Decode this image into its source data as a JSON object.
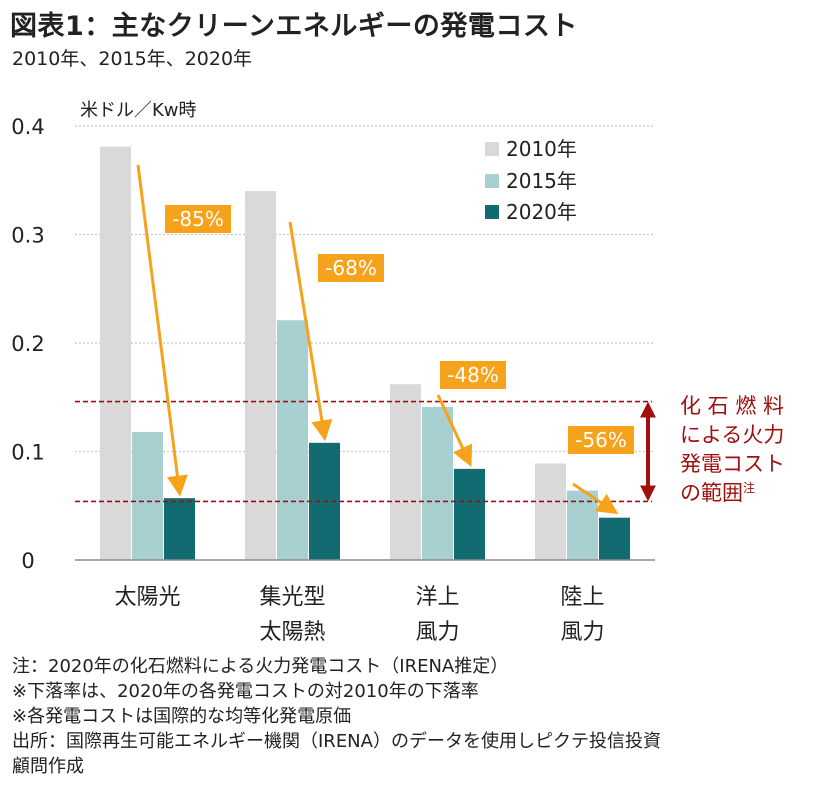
{
  "title": "図表1：主なクリーンエネルギーの発電コスト",
  "subtitle": "2010年、2015年、2020年",
  "chart_data": {
    "type": "bar",
    "ylabel": "米ドル／Kw時",
    "ylim": [
      0,
      0.4
    ],
    "yticks": [
      {
        "value": 0,
        "label": "0"
      },
      {
        "value": 0.1,
        "label": "0.1"
      },
      {
        "value": 0.2,
        "label": "0.2"
      },
      {
        "value": 0.3,
        "label": "0.3"
      },
      {
        "value": 0.4,
        "label": "0.4"
      }
    ],
    "grid": true,
    "legend_position": "top-right",
    "categories": [
      {
        "line1": "太陽光",
        "line2": ""
      },
      {
        "line1": "集光型",
        "line2": "太陽熱"
      },
      {
        "line1": "洋上",
        "line2": "風力"
      },
      {
        "line1": "陸上",
        "line2": "風力"
      }
    ],
    "series": [
      {
        "name": "2010年",
        "color": "#d9d9d9",
        "values": [
          0.381,
          0.34,
          0.162,
          0.089
        ]
      },
      {
        "name": "2015年",
        "color": "#a9d0d0",
        "values": [
          0.118,
          0.221,
          0.141,
          0.064
        ]
      },
      {
        "name": "2020年",
        "color": "#136b72",
        "values": [
          0.057,
          0.108,
          0.084,
          0.039
        ]
      }
    ],
    "declines": [
      "-85%",
      "-68%",
      "-48%",
      "-56%"
    ],
    "fossil_range": {
      "low": 0.054,
      "high": 0.146,
      "label": [
        "化 石 燃 料",
        "による火力",
        "発電コスト",
        "の範囲"
      ],
      "note_mark": "注",
      "color": "#a01010"
    },
    "accent_color": "#f7a21b"
  },
  "notes": [
    "注：2020年の化石燃料による火力発電コスト（IRENA推定）",
    "※下落率は、2020年の各発電コストの対2010年の下落率",
    "※各発電コストは国際的な均等化発電原価",
    "出所：国際再生可能エネルギー機関（IRENA）のデータを使用しピクテ投信投資",
    "顧問作成"
  ]
}
